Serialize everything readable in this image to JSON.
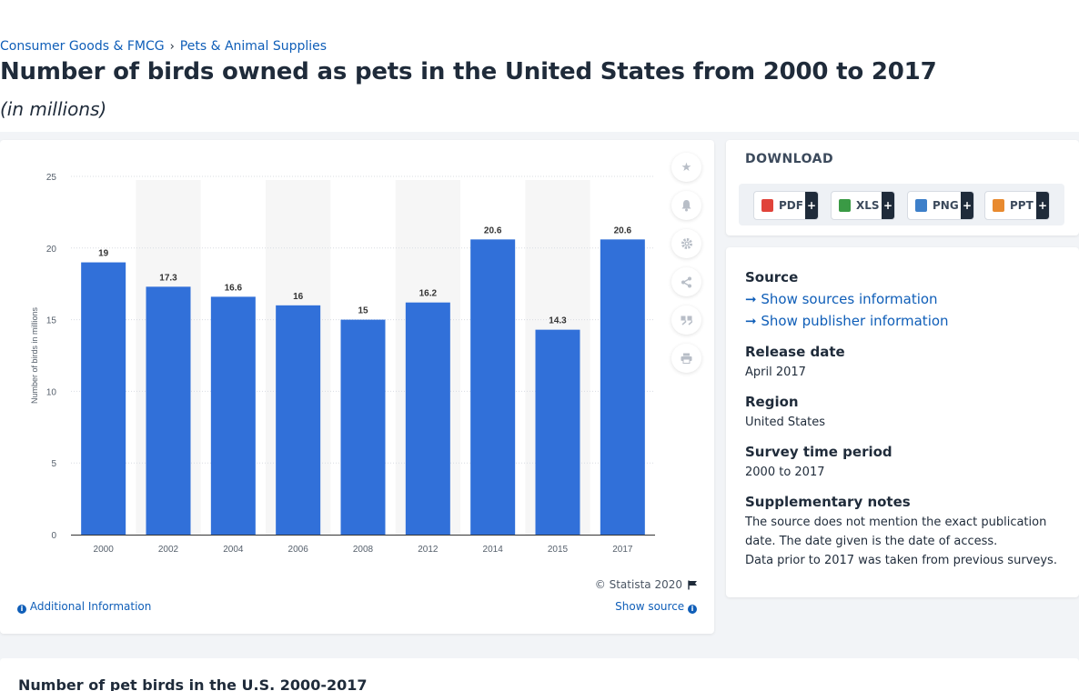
{
  "breadcrumb": {
    "items": [
      "Consumer Goods & FMCG",
      "Pets & Animal Supplies"
    ],
    "separator": "›"
  },
  "page": {
    "title": "Number of birds owned as pets in the United States from 2000 to 2017",
    "subtitle": "(in millions)"
  },
  "chart_data": {
    "type": "bar",
    "categories": [
      "2000",
      "2002",
      "2004",
      "2006",
      "2008",
      "2012",
      "2014",
      "2015",
      "2017"
    ],
    "values": [
      19,
      17.3,
      16.6,
      16,
      15,
      16.2,
      20.6,
      14.3,
      20.6
    ],
    "ylabel": "Number of birds in millions",
    "ylim": [
      0,
      25
    ],
    "yticks": [
      0,
      5,
      10,
      15,
      20,
      25
    ],
    "grid": true,
    "bar_color": "#3170d9",
    "alt_band_color": "#f6f6f6"
  },
  "tools": {
    "icons": [
      "star-icon",
      "bell-icon",
      "gear-icon",
      "share-icon",
      "quote-icon",
      "print-icon"
    ]
  },
  "chart_footer": {
    "copyright": "© Statista 2020",
    "additional_info": "Additional Information",
    "show_source": "Show source"
  },
  "download": {
    "title": "DOWNLOAD",
    "buttons": [
      {
        "label": "PDF",
        "color": "#e0433a"
      },
      {
        "label": "XLS",
        "color": "#3a9a45"
      },
      {
        "label": "PNG",
        "color": "#3d7fc9"
      },
      {
        "label": "PPT",
        "color": "#e88a2f"
      }
    ],
    "plus": "+"
  },
  "details": {
    "source_heading": "Source",
    "show_sources": "Show sources information",
    "show_publisher": "Show publisher information",
    "release_heading": "Release date",
    "release_value": "April 2017",
    "region_heading": "Region",
    "region_value": "United States",
    "survey_heading": "Survey time period",
    "survey_value": "2000 to 2017",
    "notes_heading": "Supplementary notes",
    "notes_line1": "The source does not mention the exact publication",
    "notes_line2": "date. The date given is the date of access.",
    "notes_line3": "Data prior to 2017 was taken from previous surveys."
  },
  "bottom": {
    "title": "Number of pet birds in the U.S. 2000-2017"
  }
}
